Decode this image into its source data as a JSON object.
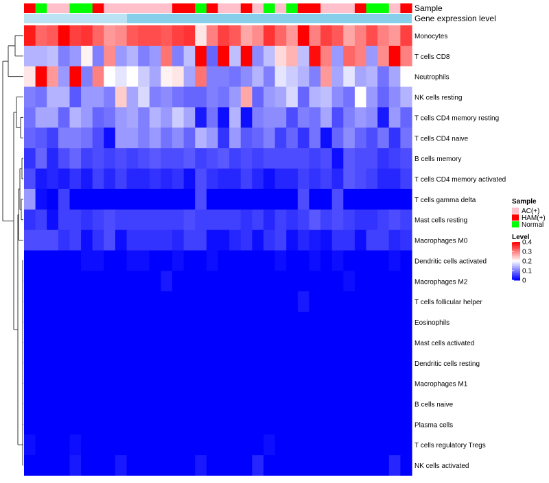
{
  "chart_data": {
    "type": "heatmap",
    "title": "",
    "annotation_labels": {
      "sample": "Sample",
      "gene_expression": "Gene expression level"
    },
    "sample_groups": [
      "AC(+)",
      "HAM(+)",
      "Normal"
    ],
    "sample_group_colors": {
      "AC(+)": "#ffc0cb",
      "HAM(+)": "#ff0000",
      "Normal": "#00ff00"
    },
    "gene_expression_color": "#87ceeb",
    "columns": [
      "HAM(+)",
      "Normal",
      "AC(+)",
      "AC(+)",
      "Normal",
      "Normal",
      "HAM(+)",
      "AC(+)",
      "AC(+)",
      "AC(+)",
      "AC(+)",
      "AC(+)",
      "AC(+)",
      "HAM(+)",
      "HAM(+)",
      "Normal",
      "HAM(+)",
      "AC(+)",
      "AC(+)",
      "HAM(+)",
      "AC(+)",
      "Normal",
      "AC(+)",
      "Normal",
      "HAM(+)",
      "HAM(+)",
      "AC(+)",
      "AC(+)",
      "AC(+)",
      "HAM(+)",
      "Normal",
      "Normal",
      "AC(+)",
      "HAM(+)"
    ],
    "rows": [
      "Monocytes",
      "T cells CD8",
      "Neutrophils",
      "NK cells resting",
      "T cells CD4 memory resting",
      "T cells CD4 naive",
      "B cells memory",
      "T cells CD4 memory activated",
      "T cells gamma delta",
      "Mast cells resting",
      "Macrophages M0",
      "Dendritic cells activated",
      "Macrophages M2",
      "T cells follicular helper",
      "Eosinophils",
      "Mast cells activated",
      "Dendritic cells resting",
      "Macrophages M1",
      "B cells naive",
      "Plasma cells",
      "T cells regulatory  Tregs",
      "NK cells activated"
    ],
    "values": [
      [
        0.38,
        0.32,
        0.33,
        0.4,
        0.35,
        0.36,
        0.32,
        0.28,
        0.29,
        0.33,
        0.34,
        0.34,
        0.33,
        0.35,
        0.36,
        0.22,
        0.3,
        0.35,
        0.33,
        0.27,
        0.29,
        0.36,
        0.32,
        0.28,
        0.4,
        0.3,
        0.35,
        0.33,
        0.27,
        0.3,
        0.34,
        0.3,
        0.28,
        0.35
      ],
      [
        0.14,
        0.14,
        0.15,
        0.1,
        0.12,
        0.21,
        0.1,
        0.29,
        0.12,
        0.14,
        0.1,
        0.12,
        0.31,
        0.1,
        0.15,
        0.4,
        0.08,
        0.4,
        0.15,
        0.4,
        0.11,
        0.15,
        0.23,
        0.26,
        0.15,
        0.39,
        0.3,
        0.12,
        0.32,
        0.3,
        0.12,
        0.29,
        0.4,
        0.3
      ],
      [
        0.22,
        0.4,
        0.28,
        0.12,
        0.4,
        0.1,
        0.3,
        0.2,
        0.18,
        0.2,
        0.16,
        0.13,
        0.21,
        0.22,
        0.13,
        0.31,
        0.1,
        0.1,
        0.09,
        0.11,
        0.14,
        0.1,
        0.18,
        0.16,
        0.14,
        0.1,
        0.28,
        0.13,
        0.18,
        0.13,
        0.14,
        0.09,
        0.13,
        0.2
      ],
      [
        0.1,
        0.09,
        0.14,
        0.14,
        0.07,
        0.12,
        0.12,
        0.1,
        0.24,
        0.13,
        0.17,
        0.1,
        0.11,
        0.09,
        0.08,
        0.08,
        0.1,
        0.09,
        0.12,
        0.27,
        0.08,
        0.12,
        0.13,
        0.17,
        0.08,
        0.14,
        0.15,
        0.11,
        0.09,
        0.2,
        0.12,
        0.08,
        0.11,
        0.14
      ],
      [
        0.09,
        0.13,
        0.13,
        0.08,
        0.14,
        0.12,
        0.08,
        0.09,
        0.12,
        0.13,
        0.1,
        0.14,
        0.12,
        0.16,
        0.13,
        0.02,
        0.09,
        0.01,
        0.14,
        0.01,
        0.1,
        0.11,
        0.11,
        0.06,
        0.1,
        0.09,
        0.13,
        0.06,
        0.1,
        0.12,
        0.11,
        0.02,
        0.12,
        0.08
      ],
      [
        0.08,
        0.07,
        0.05,
        0.1,
        0.1,
        0.09,
        0.06,
        0.01,
        0.12,
        0.12,
        0.1,
        0.12,
        0.09,
        0.11,
        0.08,
        0.14,
        0.12,
        0.04,
        0.12,
        0.07,
        0.08,
        0.1,
        0.05,
        0.08,
        0.04,
        0.09,
        0.01,
        0.08,
        0.11,
        0.08,
        0.06,
        0.09,
        0.04,
        0.09
      ],
      [
        0.04,
        0.08,
        0.03,
        0.06,
        0.08,
        0.05,
        0.06,
        0.05,
        0.06,
        0.05,
        0.06,
        0.07,
        0.06,
        0.06,
        0.07,
        0.05,
        0.06,
        0.07,
        0.05,
        0.06,
        0.05,
        0.06,
        0.06,
        0.06,
        0.06,
        0.05,
        0.06,
        0.01,
        0.07,
        0.06,
        0.06,
        0.04,
        0.05,
        0.06
      ],
      [
        0.06,
        0.02,
        0.03,
        0.02,
        0.04,
        0.02,
        0.05,
        0.03,
        0.05,
        0.03,
        0.03,
        0.04,
        0.03,
        0.04,
        0.01,
        0.06,
        0.04,
        0.03,
        0.03,
        0.05,
        0.03,
        0.01,
        0.03,
        0.03,
        0.05,
        0.04,
        0.05,
        0.03,
        0.07,
        0.06,
        0.05,
        0.03,
        0.03,
        0.05
      ],
      [
        0.12,
        0.01,
        0.0,
        0.05,
        0.0,
        0.0,
        0.0,
        0.0,
        0.0,
        0.0,
        0.0,
        0.0,
        0.0,
        0.0,
        0.0,
        0.06,
        0.0,
        0.0,
        0.0,
        0.0,
        0.0,
        0.0,
        0.0,
        0.0,
        0.06,
        0.0,
        0.0,
        0.06,
        0.0,
        0.0,
        0.0,
        0.0,
        0.0,
        0.0
      ],
      [
        0.04,
        0.05,
        0.01,
        0.05,
        0.05,
        0.04,
        0.05,
        0.06,
        0.05,
        0.05,
        0.05,
        0.05,
        0.05,
        0.05,
        0.06,
        0.05,
        0.05,
        0.05,
        0.05,
        0.04,
        0.05,
        0.03,
        0.05,
        0.04,
        0.05,
        0.07,
        0.05,
        0.06,
        0.05,
        0.04,
        0.04,
        0.05,
        0.06,
        0.05
      ],
      [
        0.06,
        0.06,
        0.06,
        0.04,
        0.05,
        0.01,
        0.04,
        0.06,
        0.01,
        0.04,
        0.04,
        0.04,
        0.04,
        0.03,
        0.05,
        0.05,
        0.01,
        0.01,
        0.03,
        0.04,
        0.01,
        0.04,
        0.05,
        0.01,
        0.03,
        0.02,
        0.01,
        0.04,
        0.04,
        0.01,
        0.05,
        0.05,
        0.03,
        0.04
      ],
      [
        0.0,
        0.0,
        0.0,
        0.0,
        0.0,
        0.01,
        0.01,
        0.0,
        0.0,
        0.01,
        0.01,
        0.0,
        0.0,
        0.01,
        0.0,
        0.0,
        0.01,
        0.0,
        0.0,
        0.0,
        0.0,
        0.0,
        0.01,
        0.0,
        0.0,
        0.01,
        0.0,
        0.01,
        0.0,
        0.0,
        0.0,
        0.0,
        0.01,
        0.0
      ],
      [
        0.0,
        0.0,
        0.0,
        0.0,
        0.0,
        0.0,
        0.0,
        0.0,
        0.0,
        0.0,
        0.0,
        0.0,
        0.02,
        0.0,
        0.0,
        0.0,
        0.0,
        0.0,
        0.0,
        0.0,
        0.0,
        0.0,
        0.0,
        0.0,
        0.0,
        0.0,
        0.0,
        0.0,
        0.01,
        0.0,
        0.0,
        0.0,
        0.0,
        0.0
      ],
      [
        0.0,
        0.0,
        0.0,
        0.0,
        0.0,
        0.0,
        0.0,
        0.0,
        0.0,
        0.0,
        0.0,
        0.0,
        0.0,
        0.0,
        0.0,
        0.0,
        0.0,
        0.0,
        0.0,
        0.0,
        0.0,
        0.0,
        0.0,
        0.0,
        0.02,
        0.0,
        0.0,
        0.0,
        0.0,
        0.0,
        0.0,
        0.0,
        0.0,
        0.0
      ],
      [
        0.0,
        0.0,
        0.0,
        0.0,
        0.0,
        0.0,
        0.0,
        0.0,
        0.0,
        0.0,
        0.0,
        0.0,
        0.0,
        0.0,
        0.0,
        0.0,
        0.0,
        0.0,
        0.0,
        0.0,
        0.0,
        0.0,
        0.0,
        0.0,
        0.0,
        0.0,
        0.0,
        0.0,
        0.0,
        0.0,
        0.0,
        0.0,
        0.0,
        0.0
      ],
      [
        0.0,
        0.0,
        0.0,
        0.0,
        0.0,
        0.0,
        0.0,
        0.0,
        0.0,
        0.0,
        0.0,
        0.0,
        0.0,
        0.0,
        0.0,
        0.0,
        0.0,
        0.0,
        0.0,
        0.0,
        0.0,
        0.0,
        0.0,
        0.0,
        0.0,
        0.0,
        0.0,
        0.0,
        0.0,
        0.0,
        0.0,
        0.0,
        0.0,
        0.0
      ],
      [
        0.0,
        0.0,
        0.0,
        0.0,
        0.0,
        0.0,
        0.0,
        0.0,
        0.0,
        0.0,
        0.0,
        0.0,
        0.0,
        0.0,
        0.0,
        0.0,
        0.0,
        0.0,
        0.0,
        0.0,
        0.0,
        0.0,
        0.0,
        0.0,
        0.0,
        0.0,
        0.0,
        0.0,
        0.0,
        0.0,
        0.0,
        0.0,
        0.0,
        0.0
      ],
      [
        0.0,
        0.0,
        0.0,
        0.0,
        0.0,
        0.0,
        0.0,
        0.0,
        0.0,
        0.0,
        0.0,
        0.0,
        0.0,
        0.0,
        0.0,
        0.0,
        0.0,
        0.0,
        0.0,
        0.0,
        0.0,
        0.0,
        0.0,
        0.0,
        0.0,
        0.0,
        0.0,
        0.0,
        0.0,
        0.0,
        0.0,
        0.0,
        0.0,
        0.0
      ],
      [
        0.0,
        0.0,
        0.0,
        0.0,
        0.0,
        0.0,
        0.0,
        0.0,
        0.0,
        0.0,
        0.0,
        0.0,
        0.0,
        0.0,
        0.0,
        0.0,
        0.0,
        0.0,
        0.0,
        0.0,
        0.0,
        0.0,
        0.0,
        0.0,
        0.0,
        0.0,
        0.0,
        0.0,
        0.0,
        0.0,
        0.0,
        0.0,
        0.0,
        0.0
      ],
      [
        0.0,
        0.0,
        0.0,
        0.0,
        0.0,
        0.0,
        0.0,
        0.0,
        0.0,
        0.0,
        0.0,
        0.0,
        0.0,
        0.0,
        0.0,
        0.0,
        0.0,
        0.0,
        0.0,
        0.0,
        0.0,
        0.0,
        0.0,
        0.0,
        0.0,
        0.0,
        0.0,
        0.0,
        0.0,
        0.0,
        0.0,
        0.0,
        0.0,
        0.0
      ],
      [
        0.01,
        0.0,
        0.0,
        0.0,
        0.01,
        0.0,
        0.0,
        0.0,
        0.0,
        0.0,
        0.0,
        0.0,
        0.0,
        0.0,
        0.0,
        0.0,
        0.0,
        0.0,
        0.0,
        0.0,
        0.0,
        0.01,
        0.0,
        0.0,
        0.0,
        0.0,
        0.0,
        0.0,
        0.0,
        0.0,
        0.0,
        0.0,
        0.0,
        0.0
      ],
      [
        0.0,
        0.0,
        0.0,
        0.0,
        0.02,
        0.0,
        0.0,
        0.0,
        0.02,
        0.0,
        0.0,
        0.0,
        0.0,
        0.0,
        0.0,
        0.02,
        0.0,
        0.0,
        0.0,
        0.0,
        0.03,
        0.0,
        0.0,
        0.0,
        0.0,
        0.0,
        0.0,
        0.0,
        0.0,
        0.0,
        0.0,
        0.0,
        0.03,
        0.0
      ]
    ],
    "color_scale": {
      "min": 0,
      "max": 0.4,
      "low_color": "#0000ff",
      "mid_color": "#ffffff",
      "mid_value": 0.2,
      "high_color": "#ff0000"
    },
    "legend": {
      "sample_title": "Sample",
      "level_title": "Level",
      "level_ticks": [
        "0.4",
        "0.3",
        "0.2",
        "0.1",
        "0"
      ],
      "level_tick_values": [
        0.4,
        0.3,
        0.2,
        0.1,
        0
      ],
      "placement": "right"
    },
    "row_dendrogram": true,
    "column_dendrogram": false
  }
}
